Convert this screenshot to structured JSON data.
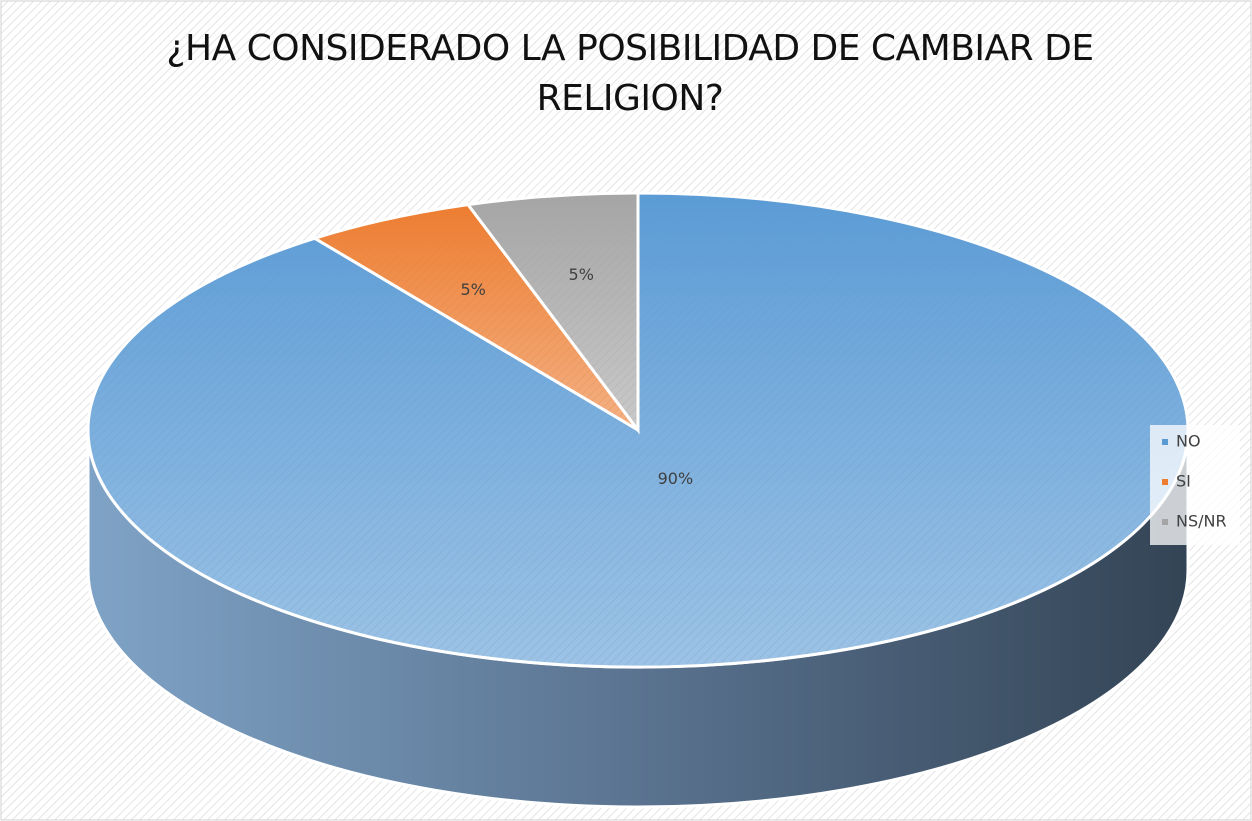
{
  "chart_data": {
    "type": "pie",
    "title": "¿HA CONSIDERADO LA POSIBILIDAD DE CAMBIAR DE RELIGION?",
    "categories": [
      "NO",
      "SI",
      "NS/NR"
    ],
    "values": [
      90,
      5,
      5
    ],
    "value_labels": [
      "90%",
      "5%",
      "5%"
    ],
    "colors": [
      "#5b9bd5",
      "#ed7d31",
      "#a5a5a5"
    ],
    "legend": "right"
  }
}
